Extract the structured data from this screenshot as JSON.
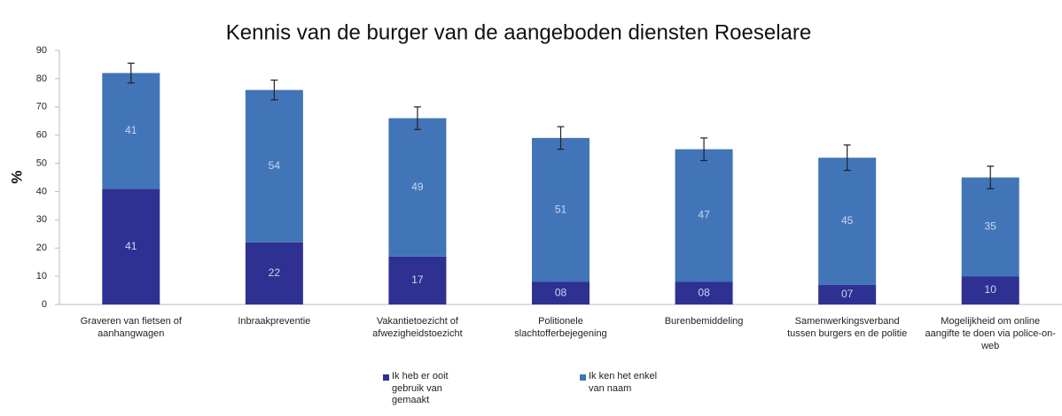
{
  "chart_data": {
    "type": "stacked-bar",
    "title": "Kennis van de burger van de aangeboden diensten Roeselare",
    "y_label": "%",
    "categories": [
      "Graveren van fietsen of aanhangwagen",
      "Inbraakpreventie",
      "Vakantietoezicht of afwezigheidstoezicht",
      "Politionele slachtofferbejegening",
      "Burenbemiddeling",
      "Samenwerkingsverband tussen burgers en de politie",
      "Mogelijkheid om online aangifte te doen via police-on-web"
    ],
    "series": [
      {
        "name": "Ik heb er ooit gebruik van gemaakt",
        "color": "#2e3192",
        "values": [
          41,
          22,
          17,
          8,
          8,
          7,
          10
        ],
        "value_labels": [
          "41",
          "22",
          "17",
          "08",
          "08",
          "07",
          "10"
        ]
      },
      {
        "name": "Ik ken het enkel van naam",
        "color": "#4274b8",
        "values": [
          41,
          54,
          49,
          51,
          47,
          45,
          35
        ],
        "errors": [
          3.5,
          3.5,
          4,
          4,
          4,
          4.5,
          4
        ]
      }
    ],
    "ylim": [
      0,
      90
    ],
    "yticks": [
      0,
      10,
      20,
      30,
      40,
      50,
      60,
      70,
      80,
      90
    ]
  }
}
